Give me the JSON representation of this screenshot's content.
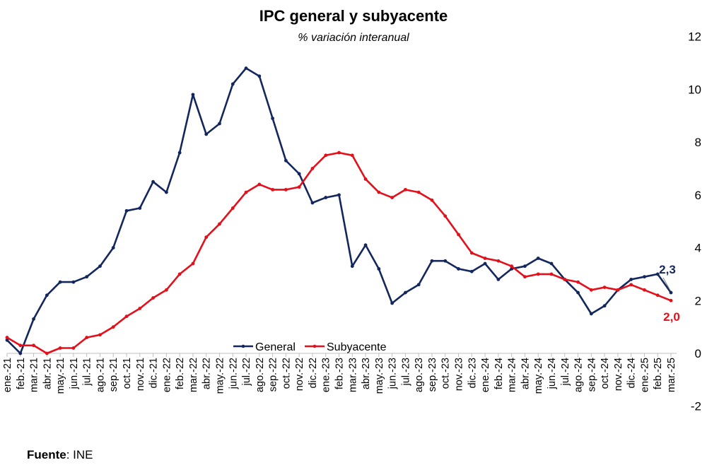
{
  "colors": {
    "general": "#13275e",
    "subyacente": "#e3101b",
    "axis": "#bfbfbf"
  },
  "chart_data": {
    "type": "line",
    "title": "IPC general y subyacente",
    "subtitle": "% variación interanual",
    "categories": [
      "ene.-21",
      "feb.-21",
      "mar.-21",
      "abr.-21",
      "may.-21",
      "jun.-21",
      "jul.-21",
      "ago.-21",
      "sep.-21",
      "oct.-21",
      "nov.-21",
      "dic.-21",
      "ene.-22",
      "feb.-22",
      "mar.-22",
      "abr.-22",
      "may.-22",
      "jun.-22",
      "jul.-22",
      "ago.-22",
      "sep.-22",
      "oct.-22",
      "nov.-22",
      "dic.-22",
      "ene.-23",
      "feb.-23",
      "mar.-23",
      "abr.-23",
      "may.-23",
      "jun.-23",
      "jul.-23",
      "ago.-23",
      "sep.-23",
      "oct.-23",
      "nov.-23",
      "dic.-23",
      "ene.-24",
      "feb.-24",
      "mar.-24",
      "abr.-24",
      "may.-24",
      "jun.-24",
      "jul.-24",
      "ago.-24",
      "sep.-24",
      "oct.-24",
      "nov.-24",
      "dic.-24",
      "ene.-25",
      "feb.-25",
      "mar.-25"
    ],
    "series": [
      {
        "name": "General",
        "values": [
          0.5,
          0.0,
          1.3,
          2.2,
          2.7,
          2.7,
          2.9,
          3.3,
          4.0,
          5.4,
          5.5,
          6.5,
          6.1,
          7.6,
          9.8,
          8.3,
          8.7,
          10.2,
          10.8,
          10.5,
          8.9,
          7.3,
          6.8,
          5.7,
          5.9,
          6.0,
          3.3,
          4.1,
          3.2,
          1.9,
          2.3,
          2.6,
          3.5,
          3.5,
          3.2,
          3.1,
          3.4,
          2.8,
          3.2,
          3.3,
          3.6,
          3.4,
          2.8,
          2.3,
          1.5,
          1.8,
          2.4,
          2.8,
          2.9,
          3.0,
          2.3
        ]
      },
      {
        "name": "Subyacente",
        "values": [
          0.6,
          0.3,
          0.3,
          0.0,
          0.2,
          0.2,
          0.6,
          0.7,
          1.0,
          1.4,
          1.7,
          2.1,
          2.4,
          3.0,
          3.4,
          4.4,
          4.9,
          5.5,
          6.1,
          6.4,
          6.2,
          6.2,
          6.3,
          7.0,
          7.5,
          7.6,
          7.5,
          6.6,
          6.1,
          5.9,
          6.2,
          6.1,
          5.8,
          5.2,
          4.5,
          3.8,
          3.6,
          3.5,
          3.3,
          2.9,
          3.0,
          3.0,
          2.8,
          2.7,
          2.4,
          2.5,
          2.4,
          2.6,
          2.4,
          2.2,
          2.0
        ]
      }
    ],
    "y_axis": {
      "min": -2,
      "max": 12,
      "step": 2,
      "ticks": [
        "-2",
        "0",
        "2",
        "4",
        "6",
        "8",
        "10",
        "12"
      ],
      "position": "right"
    },
    "legend": {
      "position": "bottom-center",
      "entries": [
        "General",
        "Subyacente"
      ]
    },
    "end_labels": {
      "general": "2,3",
      "subyacente": "2,0"
    },
    "grid": false
  },
  "source": {
    "label": "Fuente",
    "text": ": INE"
  }
}
